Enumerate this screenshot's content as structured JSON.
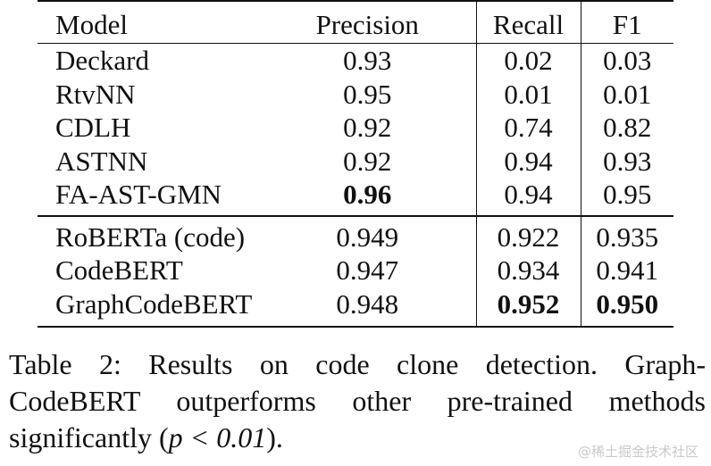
{
  "table": {
    "headers": {
      "model": "Model",
      "precision": "Precision",
      "recall": "Recall",
      "f1": "F1"
    },
    "group_a": [
      {
        "model": "Deckard",
        "precision": "0.93",
        "recall": "0.02",
        "f1": "0.03"
      },
      {
        "model": "RtvNN",
        "precision": "0.95",
        "recall": "0.01",
        "f1": "0.01"
      },
      {
        "model": "CDLH",
        "precision": "0.92",
        "recall": "0.74",
        "f1": "0.82"
      },
      {
        "model": "ASTNN",
        "precision": "0.92",
        "recall": "0.94",
        "f1": "0.93"
      },
      {
        "model": "FA-AST-GMN",
        "precision": "0.96",
        "recall": "0.94",
        "f1": "0.95"
      }
    ],
    "group_b": [
      {
        "model": "RoBERTa (code)",
        "precision": "0.949",
        "recall": "0.922",
        "f1": "0.935"
      },
      {
        "model": "CodeBERT",
        "precision": "0.947",
        "recall": "0.934",
        "f1": "0.941"
      },
      {
        "model": "GraphCodeBERT",
        "precision": "0.948",
        "recall": "0.952",
        "f1": "0.950"
      }
    ]
  },
  "caption": {
    "line1": "Table 2:  Results on code clone detection.  Graph-",
    "line2": "CodeBERT outperforms other pre-trained methods",
    "line3_prefix": "significantly (",
    "line3_math": "p < 0.01",
    "line3_suffix": ")."
  },
  "watermark": "@稀土掘金技术社区"
}
